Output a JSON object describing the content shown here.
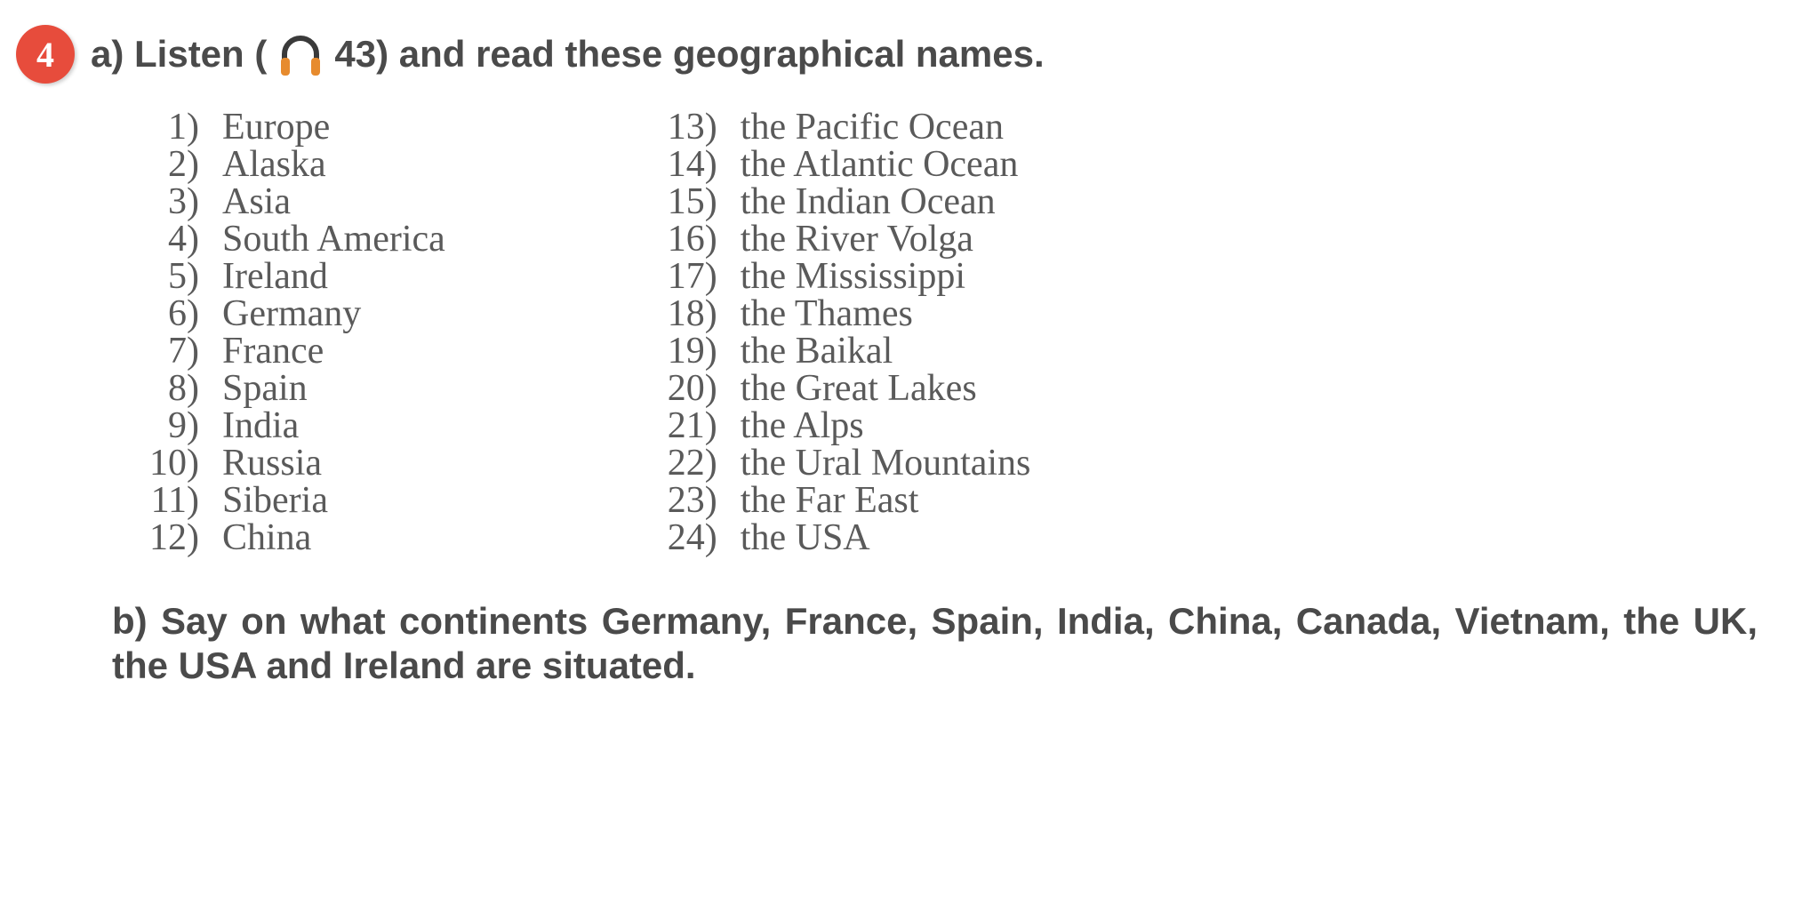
{
  "badge_number": "4",
  "instr_a_part1": "a)  Listen  (",
  "instr_a_part2": "  43)  and  read  these  geographical  names.",
  "left": [
    {
      "n": "1)",
      "t": "Europe"
    },
    {
      "n": "2)",
      "t": "Alaska"
    },
    {
      "n": "3)",
      "t": "Asia"
    },
    {
      "n": "4)",
      "t": "South  America"
    },
    {
      "n": "5)",
      "t": "Ireland"
    },
    {
      "n": "6)",
      "t": "Germany"
    },
    {
      "n": "7)",
      "t": "France"
    },
    {
      "n": "8)",
      "t": "Spain"
    },
    {
      "n": "9)",
      "t": "India"
    },
    {
      "n": "10)",
      "t": "Russia"
    },
    {
      "n": "11)",
      "t": "Siberia"
    },
    {
      "n": "12)",
      "t": "China"
    }
  ],
  "right": [
    {
      "n": "13)",
      "t": "the  Pacific  Ocean"
    },
    {
      "n": "14)",
      "t": "the  Atlantic  Ocean"
    },
    {
      "n": "15)",
      "t": "the  Indian  Ocean"
    },
    {
      "n": "16)",
      "t": "the  River  Volga"
    },
    {
      "n": "17)",
      "t": "the  Mississippi"
    },
    {
      "n": "18)",
      "t": "the  Thames"
    },
    {
      "n": "19)",
      "t": "the  Baikal"
    },
    {
      "n": "20)",
      "t": "the  Great  Lakes"
    },
    {
      "n": "21)",
      "t": "the  Alps"
    },
    {
      "n": "22)",
      "t": "the  Ural  Mountains"
    },
    {
      "n": "23)",
      "t": "the  Far  East"
    },
    {
      "n": "24)",
      "t": "the  USA"
    }
  ],
  "instr_b": "b)  Say  on  what  continents  Germany,  France,  Spain,  India, China,  Canada,  Vietnam,  the  UK,  the  USA  and  Ireland  are situated.",
  "colors": {
    "badge_bg": "#e74c3c",
    "badge_fg": "#ffffff",
    "instr_fg": "#4a4a4a",
    "list_fg": "#5a5a5a",
    "headphone_arc": "#3a3a3a",
    "headphone_cup": "#e78b2e"
  },
  "fontsizes": {
    "badge": 40,
    "instr": 42,
    "list": 42
  }
}
